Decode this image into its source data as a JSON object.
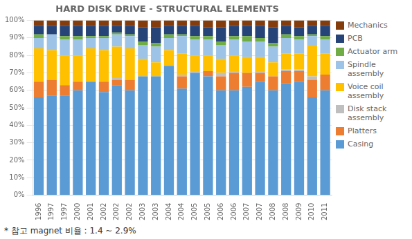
{
  "chart_data": {
    "type": "bar",
    "stacked": true,
    "title": "HARD DISK DRIVE - STRUCTURAL ELEMENTS",
    "annotation": "* 참고 magnet 비율 : 1.4 ~ 2.9%",
    "categories": [
      "1996",
      "1997",
      "1997",
      "2000",
      "2001",
      "2002",
      "2002",
      "2002",
      "2003",
      "2003",
      "2004",
      "2004",
      "2005",
      "2005",
      "2006",
      "2006",
      "2007",
      "2007",
      "2008",
      "2008",
      "2009",
      "2010",
      "2011"
    ],
    "series": [
      {
        "name": "Casing",
        "color": "#5B9BD5",
        "values": [
          56,
          57,
          57,
          60,
          65,
          59,
          63,
          60,
          68,
          68,
          74,
          61,
          70,
          68,
          60,
          60,
          62,
          65,
          60,
          64,
          65,
          56,
          60
        ]
      },
      {
        "name": "Platters",
        "color": "#ED7D31",
        "values": [
          9,
          9,
          6,
          5,
          0,
          6,
          3,
          6,
          0,
          0,
          0,
          7,
          0,
          3,
          8,
          10,
          8,
          5,
          8,
          7,
          6,
          10,
          9
        ]
      },
      {
        "name": "Disk stack\nassembly",
        "color": "#BFBFBF",
        "values": [
          0,
          0,
          0,
          0,
          0,
          0,
          1,
          0,
          0,
          0,
          0,
          1,
          1,
          0,
          2,
          1,
          0,
          1,
          0,
          1,
          1,
          2,
          0
        ]
      },
      {
        "name": "Voice coil\nassembly",
        "color": "#FFC000",
        "values": [
          19,
          17,
          17,
          15,
          19,
          18,
          18,
          18,
          10,
          8,
          9,
          12,
          9,
          9,
          8,
          9,
          9,
          8,
          8,
          9,
          9,
          18,
          12
        ]
      },
      {
        "name": "Spindle\nassembly",
        "color": "#9DC3E6",
        "values": [
          6,
          9,
          9,
          9,
          6,
          7,
          7,
          7,
          8,
          9,
          7,
          10,
          9,
          9,
          8,
          9,
          9,
          9,
          9,
          9,
          8,
          5,
          8
        ]
      },
      {
        "name": "Actuator arm",
        "color": "#70AD47",
        "values": [
          2,
          0,
          2,
          2,
          1,
          1,
          1,
          1,
          2,
          2,
          2,
          1,
          2,
          2,
          2,
          2,
          3,
          2,
          2,
          2,
          2,
          1,
          2
        ]
      },
      {
        "name": "PCB",
        "color": "#264478",
        "values": [
          5,
          5,
          6,
          6,
          6,
          6,
          4,
          5,
          8,
          9,
          5,
          5,
          6,
          5,
          8,
          6,
          6,
          7,
          9,
          5,
          5,
          5,
          6
        ]
      },
      {
        "name": "Mechanics",
        "color": "#843C0C",
        "values": [
          3,
          3,
          3,
          3,
          3,
          3,
          3,
          3,
          4,
          4,
          3,
          3,
          3,
          4,
          4,
          3,
          3,
          3,
          4,
          3,
          4,
          3,
          3
        ]
      }
    ],
    "ylim": [
      0,
      100
    ],
    "yticks": [
      {
        "value": 0,
        "label": "0%"
      },
      {
        "value": 10,
        "label": "10%"
      },
      {
        "value": 20,
        "label": "20%"
      },
      {
        "value": 30,
        "label": "30%"
      },
      {
        "value": 40,
        "label": "40%"
      },
      {
        "value": 50,
        "label": "50%"
      },
      {
        "value": 60,
        "label": "60%"
      },
      {
        "value": 70,
        "label": "70%"
      },
      {
        "value": 80,
        "label": "80%"
      },
      {
        "value": 90,
        "label": "90%"
      },
      {
        "value": 100,
        "label": "100%"
      }
    ],
    "grid": true,
    "legend": "right"
  }
}
